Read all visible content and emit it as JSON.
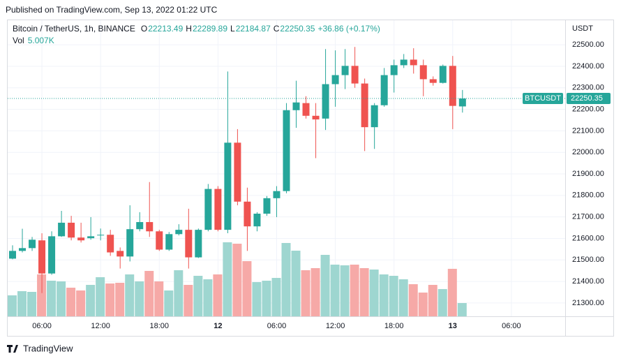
{
  "chart_data": {
    "type": "candlestick",
    "published": "Published on TradingView.com, Sep 13, 2022 01:22 UTC",
    "symbol": "Bitcoin / TetherUS, 1h, BINANCE",
    "ohlc_letters": [
      "O",
      "H",
      "L",
      "C"
    ],
    "change_label": "+36.86 (+0.17%)",
    "volume_name": "Vol",
    "volume_readout": "5.007K",
    "currency": "USDT",
    "ticker": "BTCUSDT",
    "brand": "TradingView",
    "up_color": "#26a69a",
    "down_color": "#ef5350",
    "up_volume_color": "#9ed6d0",
    "down_volume_color": "#f6a9a7",
    "grid": true,
    "open": [
      21506,
      21542,
      21555,
      21591,
      21437,
      21610,
      21673,
      21604,
      21601,
      21614,
      21617,
      21542,
      21516,
      21643,
      21676,
      21633,
      21548,
      21620,
      21640,
      21512,
      21640,
      21830,
      21640,
      22045,
      21771,
      21656,
      21715,
      21787,
      21820,
      22196,
      22229,
      22170,
      22157,
      22317,
      22359,
      22402,
      22320,
      22117,
      22219,
      22359,
      22405,
      22431,
      22405,
      22340,
      22323,
      22402,
      22213.49
    ],
    "high": [
      21568,
      21645,
      21607,
      21624,
      21633,
      21728,
      21705,
      21673,
      21699,
      21646,
      21640,
      21558,
      21754,
      21722,
      21862,
      21640,
      21630,
      21666,
      21738,
      21646,
      21853,
      21843,
      22376,
      22108,
      21836,
      21722,
      21797,
      21843,
      22229,
      22333,
      22261,
      22229,
      22480,
      22474,
      22480,
      22490,
      22343,
      22229,
      22392,
      22431,
      22457,
      22484,
      22431,
      22353,
      22408,
      22448,
      22289.89
    ],
    "low": [
      21503,
      21535,
      21542,
      21346,
      21431,
      21607,
      21591,
      21581,
      21594,
      21591,
      21519,
      21460,
      21493,
      21633,
      21607,
      21542,
      21542,
      21614,
      21460,
      21509,
      21633,
      21633,
      21624,
      21754,
      21542,
      21633,
      21705,
      21699,
      21810,
      22114,
      22157,
      21973,
      22104,
      22212,
      22294,
      22300,
      22006,
      22016,
      22212,
      22278,
      22392,
      22366,
      22261,
      22310,
      22320,
      22108,
      22184.87
    ],
    "close": [
      21542,
      21555,
      21594,
      21437,
      21610,
      21673,
      21604,
      21591,
      21610,
      21617,
      21535,
      21516,
      21643,
      21676,
      21633,
      21548,
      21620,
      21640,
      21512,
      21640,
      21830,
      21640,
      22045,
      21771,
      21656,
      21715,
      21787,
      21820,
      22196,
      22232,
      22170,
      22153,
      22317,
      22359,
      22402,
      22320,
      22117,
      22219,
      22359,
      22405,
      22431,
      22405,
      22340,
      22323,
      22402,
      22216,
      22250.35
    ],
    "volume": [
      7.91,
      9.49,
      9.22,
      15.81,
      13.44,
      13.18,
      10.8,
      9.75,
      11.86,
      14.76,
      12.38,
      12.65,
      15.81,
      13.18,
      17.13,
      13.18,
      9.75,
      17.39,
      11.86,
      15.28,
      13.97,
      15.81,
      27.93,
      27.4,
      20.82,
      12.91,
      13.44,
      14.49,
      27.67,
      24.77,
      17.39,
      18.18,
      23.19,
      19.5,
      19.24,
      19.5,
      18.18,
      17.65,
      15.81,
      15.28,
      13.97,
      12.12,
      8.96,
      11.86,
      10.28,
      17.92,
      5.007
    ],
    "xlim": [
      -0.5,
      56.5
    ],
    "xticks": [
      {
        "value": 3,
        "label": "06:00"
      },
      {
        "value": 9,
        "label": "12:00"
      },
      {
        "value": 15,
        "label": "18:00"
      },
      {
        "value": 21,
        "label": "12"
      },
      {
        "value": 27,
        "label": "06:00"
      },
      {
        "value": 33,
        "label": "12:00"
      },
      {
        "value": 39,
        "label": "18:00"
      },
      {
        "value": 45,
        "label": "13"
      },
      {
        "value": 51,
        "label": "06:00"
      }
    ],
    "ylim": [
      21238,
      22614
    ],
    "yticks": [
      {
        "value": 21300,
        "label": "21300.00"
      },
      {
        "value": 21400,
        "label": "21400.00"
      },
      {
        "value": 21500,
        "label": "21500.00"
      },
      {
        "value": 21600,
        "label": "21600.00"
      },
      {
        "value": 21700,
        "label": "21700.00"
      },
      {
        "value": 21800,
        "label": "21800.00"
      },
      {
        "value": 21900,
        "label": "21900.00"
      },
      {
        "value": 22000,
        "label": "22000.00"
      },
      {
        "value": 22100,
        "label": "22100.00"
      },
      {
        "value": 22200,
        "label": "22200.00"
      },
      {
        "value": 22300,
        "label": "22300.00"
      },
      {
        "value": 22400,
        "label": "22400.00"
      },
      {
        "value": 22500,
        "label": "22500.00"
      }
    ]
  }
}
